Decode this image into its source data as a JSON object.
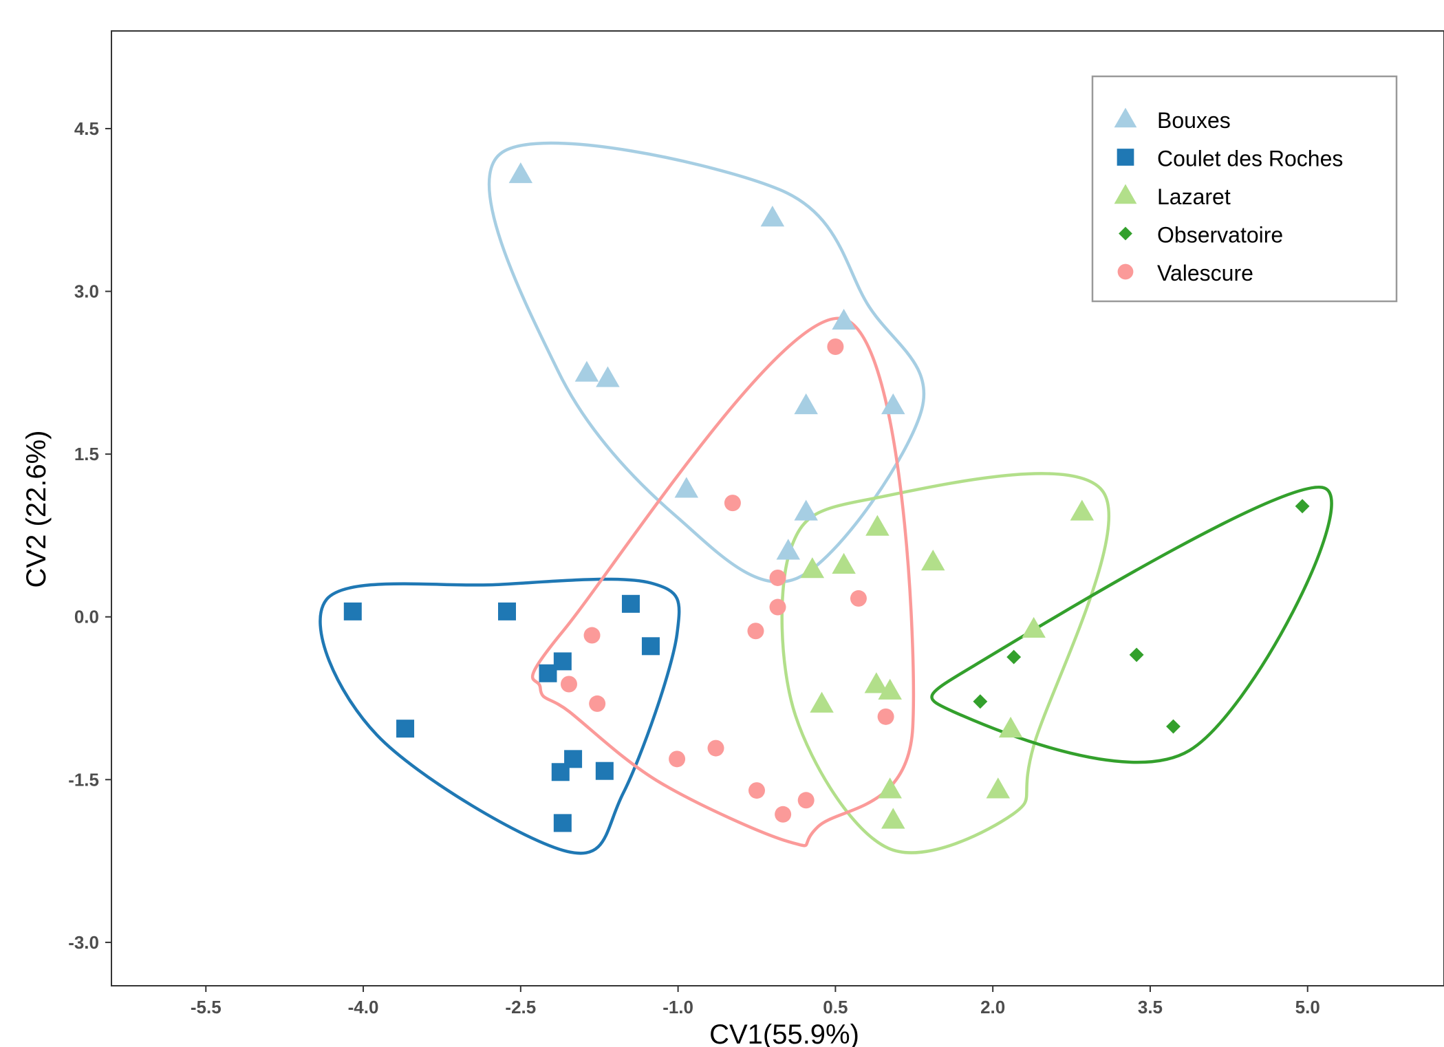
{
  "chart_data": {
    "type": "scatter",
    "title": "",
    "xlabel": "CV1(55.9%)",
    "ylabel": "CV2 (22.6%)",
    "xlim": [
      -6.4,
      6.3
    ],
    "ylim": [
      -3.4,
      5.4
    ],
    "x_ticks": [
      "-5.5",
      "-4.0",
      "-2.5",
      "-1.0",
      "0.5",
      "2.0",
      "3.5",
      "5.0"
    ],
    "y_ticks": [
      "-3.0",
      "-1.5",
      "0.0",
      "1.5",
      "3.0",
      "4.5"
    ],
    "grid": false,
    "legend_position": "top-right",
    "hull_outlines": true,
    "series": [
      {
        "name": "Bouxes",
        "marker": "triangle",
        "color": "#a6cee3",
        "points": [
          [
            -2.5,
            4.08
          ],
          [
            -0.1,
            3.68
          ],
          [
            0.58,
            2.73
          ],
          [
            -1.87,
            2.25
          ],
          [
            -1.67,
            2.2
          ],
          [
            0.22,
            1.95
          ],
          [
            1.05,
            1.95
          ],
          [
            -0.92,
            1.18
          ],
          [
            0.22,
            0.97
          ],
          [
            0.05,
            0.61
          ]
        ]
      },
      {
        "name": "Coulet des Roches",
        "marker": "square",
        "color": "#1f78b4",
        "points": [
          [
            -4.1,
            0.05
          ],
          [
            -2.63,
            0.05
          ],
          [
            -1.45,
            0.12
          ],
          [
            -1.26,
            -0.27
          ],
          [
            -2.1,
            -0.41
          ],
          [
            -2.24,
            -0.52
          ],
          [
            -3.6,
            -1.03
          ],
          [
            -2.0,
            -1.31
          ],
          [
            -1.7,
            -1.42
          ],
          [
            -2.12,
            -1.43
          ],
          [
            -2.1,
            -1.9
          ]
        ]
      },
      {
        "name": "Lazaret",
        "marker": "triangle",
        "color": "#b2df8a",
        "points": [
          [
            2.85,
            0.97
          ],
          [
            0.9,
            0.83
          ],
          [
            1.43,
            0.51
          ],
          [
            0.58,
            0.48
          ],
          [
            0.28,
            0.44
          ],
          [
            2.39,
            -0.11
          ],
          [
            0.89,
            -0.62
          ],
          [
            1.02,
            -0.68
          ],
          [
            0.37,
            -0.8
          ],
          [
            2.17,
            -1.03
          ],
          [
            1.02,
            -1.59
          ],
          [
            2.05,
            -1.59
          ],
          [
            1.05,
            -1.87
          ]
        ]
      },
      {
        "name": "Observatoire",
        "marker": "diamond",
        "color": "#33a02c",
        "points": [
          [
            4.95,
            1.02
          ],
          [
            2.2,
            -0.37
          ],
          [
            3.37,
            -0.35
          ],
          [
            1.88,
            -0.78
          ],
          [
            3.72,
            -1.01
          ]
        ]
      },
      {
        "name": "Valescure",
        "marker": "circle",
        "color": "#fb9a99",
        "points": [
          [
            0.5,
            2.49
          ],
          [
            -0.48,
            1.05
          ],
          [
            -0.05,
            0.36
          ],
          [
            -0.05,
            0.09
          ],
          [
            0.72,
            0.17
          ],
          [
            -0.26,
            -0.13
          ],
          [
            -1.82,
            -0.17
          ],
          [
            -2.04,
            -0.62
          ],
          [
            -1.77,
            -0.8
          ],
          [
            0.98,
            -0.92
          ],
          [
            -1.01,
            -1.31
          ],
          [
            -0.64,
            -1.21
          ],
          [
            -0.25,
            -1.6
          ],
          [
            0.22,
            -1.69
          ],
          [
            0.0,
            -1.82
          ]
        ]
      }
    ]
  }
}
